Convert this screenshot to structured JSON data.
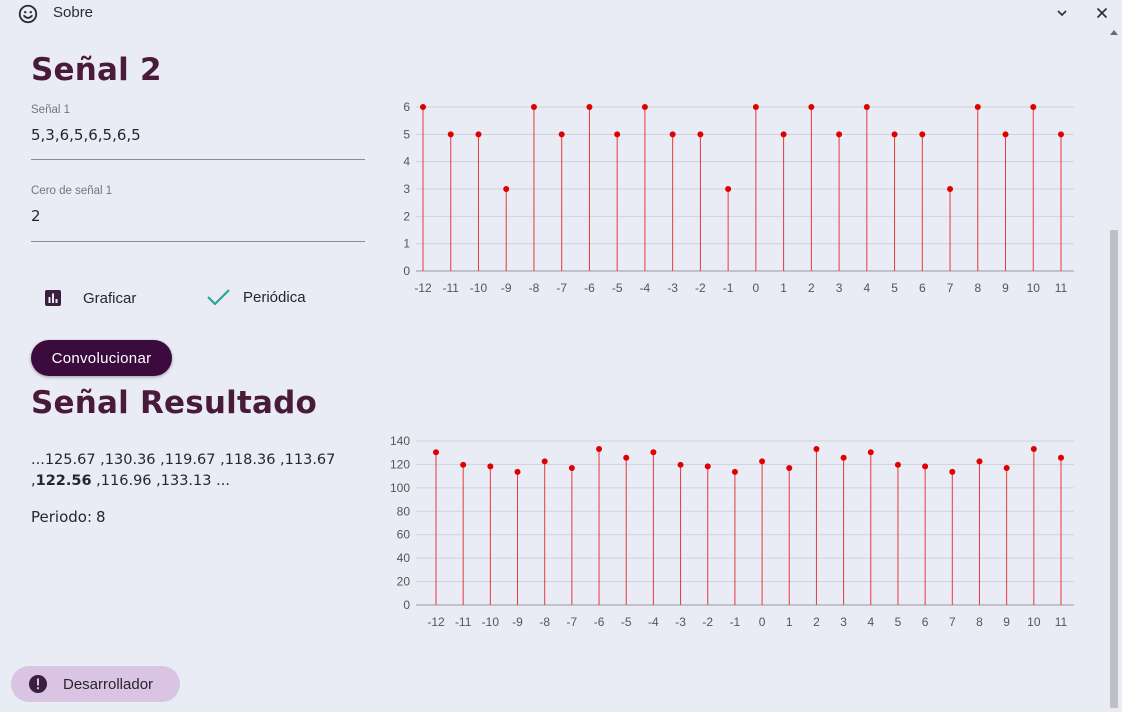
{
  "window": {
    "title": "Sobre",
    "title_icon": "smiley-icon",
    "minimize_icon": "chevron-down-icon",
    "close_icon": "close-icon"
  },
  "section1": {
    "title": "Señal 2",
    "field1": {
      "label": "Señal 1",
      "value": "5,3,6,5,6,5,6,5"
    },
    "field2": {
      "label": "Cero de señal 1",
      "value": "2"
    },
    "graph_button": {
      "label": "Graficar",
      "icon": "bar-chart-icon"
    },
    "periodic": {
      "label": "Periódica",
      "checked": true,
      "icon": "check-icon"
    }
  },
  "convolve_button": {
    "label": "Convolucionar"
  },
  "section2": {
    "title": "Señal Resultado",
    "result_pre": "...125.67 ,130.36 ,119.67 ,118.36 ,113.67 ,",
    "result_bold": "122.56",
    "result_post": " ,116.96 ,133.13 ...",
    "period_label": "Periodo:",
    "period_value": "8"
  },
  "developer_button": {
    "label": "Desarrollador",
    "icon": "exclamation-circle-icon"
  },
  "colors": {
    "accent": "#3a0b3c",
    "title": "#4a1a3a",
    "stem": "#e8383a",
    "point": "#e00000",
    "check": "#26a69a",
    "chip": "#d9c4e3"
  },
  "chart_data": [
    {
      "type": "stem",
      "x": [
        -12,
        -11,
        -10,
        -9,
        -8,
        -7,
        -6,
        -5,
        -4,
        -3,
        -2,
        -1,
        0,
        1,
        2,
        3,
        4,
        5,
        6,
        7,
        8,
        9,
        10,
        11
      ],
      "values": [
        6,
        5,
        5,
        3,
        6,
        5,
        6,
        5,
        6,
        5,
        5,
        3,
        6,
        5,
        6,
        5,
        6,
        5,
        5,
        3,
        6,
        5,
        6,
        5
      ],
      "yticks": [
        0,
        1,
        2,
        3,
        4,
        5,
        6
      ],
      "ylim": [
        0,
        6
      ],
      "grid": true
    },
    {
      "type": "stem",
      "x": [
        -12,
        -11,
        -10,
        -9,
        -8,
        -7,
        -6,
        -5,
        -4,
        -3,
        -2,
        -1,
        0,
        1,
        2,
        3,
        4,
        5,
        6,
        7,
        8,
        9,
        10,
        11
      ],
      "values": [
        130.36,
        119.67,
        118.36,
        113.67,
        122.56,
        116.96,
        133.13,
        125.67,
        130.36,
        119.67,
        118.36,
        113.67,
        122.56,
        116.96,
        133.13,
        125.67,
        130.36,
        119.67,
        118.36,
        113.67,
        122.56,
        116.96,
        133.13,
        125.67
      ],
      "yticks": [
        0,
        20,
        40,
        60,
        80,
        100,
        120,
        140
      ],
      "ylim": [
        0,
        140
      ],
      "grid": true
    }
  ]
}
